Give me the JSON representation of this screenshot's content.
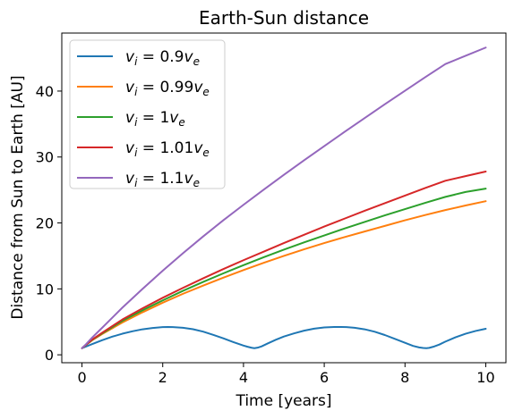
{
  "chart_data": {
    "type": "line",
    "title": "Earth-Sun distance",
    "xlabel": "Time [years]",
    "ylabel": "Distance from Sun to Earth [AU]",
    "xlim": [
      -0.5,
      10.5
    ],
    "ylim": [
      -1.2,
      48.8
    ],
    "xticks": [
      0,
      2,
      4,
      6,
      8,
      10
    ],
    "yticks": [
      0,
      10,
      20,
      30,
      40
    ],
    "grid": false,
    "legend_position": "top-left",
    "series": [
      {
        "name": "v_i = 0.9v_e",
        "legend": {
          "base": "v",
          "sub": "i",
          "middle": " = 0.9",
          "end": "v",
          "endsub": "e"
        },
        "color": "#1f77b4",
        "x": [
          0,
          0.25,
          0.5,
          0.75,
          1.0,
          1.25,
          1.5,
          1.75,
          2.0,
          2.13,
          2.25,
          2.5,
          2.75,
          3.0,
          3.25,
          3.5,
          3.75,
          4.0,
          4.1,
          4.2,
          4.27,
          4.35,
          4.45,
          4.6,
          4.8,
          5.0,
          5.25,
          5.5,
          5.75,
          6.0,
          6.25,
          6.4,
          6.55,
          6.75,
          7.0,
          7.25,
          7.5,
          7.75,
          8.0,
          8.2,
          8.35,
          8.45,
          8.53,
          8.6,
          8.7,
          8.85,
          9.0,
          9.25,
          9.5,
          9.75,
          10.0
        ],
        "y": [
          1.0,
          1.62,
          2.22,
          2.75,
          3.2,
          3.57,
          3.87,
          4.07,
          4.2,
          4.22,
          4.2,
          4.1,
          3.88,
          3.52,
          3.03,
          2.5,
          1.92,
          1.4,
          1.22,
          1.07,
          1.0,
          1.08,
          1.28,
          1.72,
          2.28,
          2.77,
          3.25,
          3.66,
          3.97,
          4.15,
          4.22,
          4.22,
          4.2,
          4.1,
          3.87,
          3.5,
          3.0,
          2.42,
          1.82,
          1.35,
          1.12,
          1.03,
          1.0,
          1.05,
          1.22,
          1.55,
          2.0,
          2.65,
          3.2,
          3.62,
          3.95
        ]
      },
      {
        "name": "v_i = 0.99v_e",
        "legend": {
          "base": "v",
          "sub": "i",
          "middle": " = 0.99",
          "end": "v",
          "endsub": "e"
        },
        "color": "#ff7f0e",
        "x": [
          0,
          0.1,
          0.25,
          0.5,
          1,
          1.5,
          2,
          2.5,
          3,
          3.5,
          4,
          4.5,
          5,
          5.5,
          6,
          6.5,
          7,
          7.5,
          8,
          8.5,
          9,
          9.5,
          10
        ],
        "y": [
          1.0,
          1.5,
          2.2,
          3.15,
          4.9,
          6.45,
          7.9,
          9.25,
          10.5,
          11.7,
          12.85,
          13.95,
          15.0,
          16.0,
          16.95,
          17.85,
          18.7,
          19.55,
          20.4,
          21.2,
          21.95,
          22.65,
          23.3
        ]
      },
      {
        "name": "v_i = 1v_e",
        "legend": {
          "base": "v",
          "sub": "i",
          "middle": " = 1",
          "end": "v",
          "endsub": "e"
        },
        "color": "#2ca02c",
        "x": [
          0,
          0.1,
          0.25,
          0.5,
          1,
          1.5,
          2,
          2.5,
          3,
          3.5,
          4,
          4.5,
          5,
          5.5,
          6,
          6.5,
          7,
          7.5,
          8,
          8.5,
          9,
          9.5,
          10
        ],
        "y": [
          1.0,
          1.5,
          2.25,
          3.25,
          5.15,
          6.75,
          8.25,
          9.7,
          11.05,
          12.35,
          13.6,
          14.8,
          15.95,
          17.05,
          18.1,
          19.15,
          20.15,
          21.15,
          22.1,
          23.05,
          23.95,
          24.7,
          25.2
        ]
      },
      {
        "name": "v_i = 1.01v_e",
        "legend": {
          "base": "v",
          "sub": "i",
          "middle": " = 1.01",
          "end": "v",
          "endsub": "e"
        },
        "color": "#d62728",
        "x": [
          0,
          0.1,
          0.25,
          0.5,
          1,
          1.5,
          2,
          2.5,
          3,
          3.5,
          4,
          4.5,
          5,
          5.5,
          6,
          6.5,
          7,
          7.5,
          8,
          8.5,
          9,
          9.5,
          10
        ],
        "y": [
          1.0,
          1.52,
          2.3,
          3.35,
          5.35,
          7.05,
          8.65,
          10.15,
          11.6,
          13.0,
          14.35,
          15.65,
          16.95,
          18.2,
          19.45,
          20.65,
          21.85,
          23.0,
          24.15,
          25.3,
          26.4,
          27.1,
          27.8
        ]
      },
      {
        "name": "v_i = 1.1v_e",
        "legend": {
          "base": "v",
          "sub": "i",
          "middle": " = 1.1",
          "end": "v",
          "endsub": "e"
        },
        "color": "#9467bd",
        "x": [
          0,
          0.1,
          0.25,
          0.5,
          1,
          1.5,
          2,
          2.5,
          3,
          3.5,
          4,
          4.5,
          5,
          5.5,
          6,
          6.5,
          7,
          7.5,
          8,
          8.5,
          9,
          9.5,
          10
        ],
        "y": [
          1.0,
          1.6,
          2.6,
          4.1,
          7.15,
          10.0,
          12.75,
          15.4,
          17.95,
          20.4,
          22.75,
          25.05,
          27.3,
          29.5,
          31.65,
          33.8,
          35.9,
          38.0,
          40.05,
          42.1,
          44.1,
          45.35,
          46.6
        ]
      }
    ]
  }
}
